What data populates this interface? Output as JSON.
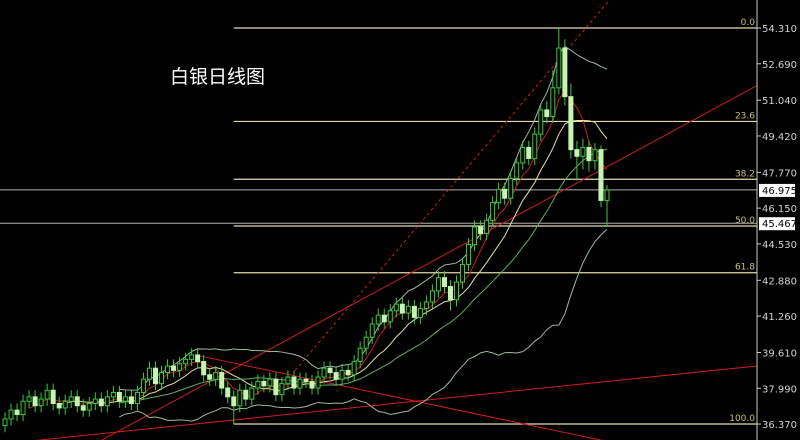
{
  "chart_data": {
    "type": "candlestick",
    "title": "白银日线图",
    "ylim": [
      35.6,
      55.6
    ],
    "y_ticks": [
      "54.310",
      "52.690",
      "51.040",
      "49.420",
      "47.770",
      "46.150",
      "44.530",
      "42.880",
      "41.260",
      "39.610",
      "37.990",
      "36.370"
    ],
    "current_price_labels": [
      "46.975",
      "45.467"
    ],
    "current_price_values": [
      46.975,
      45.467
    ],
    "fibonacci": {
      "high": 54.31,
      "low": 36.37,
      "start_index": 38,
      "levels": [
        {
          "label": "0.0",
          "ratio": 0
        },
        {
          "label": "23.6",
          "ratio": 0.236
        },
        {
          "label": "38.2",
          "ratio": 0.382
        },
        {
          "label": "50.0",
          "ratio": 0.5
        },
        {
          "label": "61.8",
          "ratio": 0.618
        },
        {
          "label": "100.0",
          "ratio": 1
        }
      ]
    },
    "trendlines": [
      {
        "style": "dashed",
        "from": [
          48.2,
          38.8
        ],
        "to": [
          100.5,
          55.6
        ]
      },
      {
        "style": "solid",
        "from": [
          15.8,
          35.6
        ],
        "to": [
          124.9,
          51.7
        ]
      },
      {
        "style": "solid",
        "from": [
          31.6,
          39.5
        ],
        "to": [
          99.7,
          35.6
        ]
      },
      {
        "style": "solid",
        "from": [
          4.2,
          35.6
        ],
        "to": [
          124.9,
          39.0
        ]
      }
    ],
    "open": [
      36.3,
      36.6,
      37.0,
      36.8,
      37.4,
      37.6,
      37.2,
      37.5,
      37.9,
      37.3,
      37.1,
      37.4,
      37.6,
      37.2,
      37.0,
      37.3,
      37.5,
      37.2,
      37.6,
      37.8,
      37.4,
      37.6,
      37.3,
      37.8,
      38.4,
      38.9,
      38.2,
      38.7,
      39.0,
      38.8,
      39.1,
      39.3,
      39.5,
      39.2,
      38.6,
      38.4,
      38.7,
      38.0,
      37.6,
      37.2,
      37.9,
      37.5,
      38.0,
      38.3,
      38.1,
      38.4,
      37.7,
      38.2,
      38.5,
      38.0,
      38.4,
      38.3,
      38.0,
      38.5,
      38.9,
      38.7,
      38.4,
      38.8,
      38.6,
      39.2,
      39.8,
      40.3,
      40.9,
      41.3,
      41.0,
      41.5,
      41.8,
      41.4,
      41.7,
      41.2,
      41.6,
      41.9,
      42.4,
      43.0,
      42.6,
      42.0,
      42.8,
      43.6,
      44.5,
      45.3,
      45.0,
      45.6,
      46.4,
      47.0,
      46.6,
      47.5,
      48.2,
      48.9,
      48.4,
      49.5,
      50.6,
      50.3,
      51.6,
      53.4,
      51.2,
      48.8,
      48.5,
      48.9,
      48.3,
      48.8,
      46.5
    ],
    "high": [
      36.9,
      37.3,
      37.3,
      37.7,
      37.9,
      37.9,
      37.8,
      38.2,
      38.2,
      37.6,
      37.7,
      37.9,
      37.9,
      37.5,
      37.6,
      37.8,
      37.8,
      37.9,
      38.1,
      38.1,
      37.9,
      37.9,
      38.1,
      38.7,
      39.2,
      39.2,
      39.0,
      39.3,
      39.3,
      39.4,
      39.6,
      39.8,
      39.8,
      39.5,
      38.9,
      39.0,
      39.0,
      38.3,
      37.9,
      38.2,
      38.2,
      38.3,
      38.6,
      38.6,
      38.7,
      38.7,
      38.5,
      38.8,
      38.8,
      38.7,
      38.7,
      38.6,
      38.8,
      39.2,
      39.2,
      39.0,
      39.1,
      39.1,
      39.5,
      40.1,
      40.6,
      41.2,
      41.6,
      41.6,
      41.8,
      42.1,
      42.1,
      42.0,
      42.0,
      41.9,
      42.2,
      42.7,
      43.3,
      43.3,
      42.9,
      43.1,
      43.9,
      44.8,
      45.6,
      45.6,
      45.9,
      46.7,
      47.3,
      47.3,
      47.8,
      48.5,
      49.2,
      49.2,
      49.8,
      50.9,
      51.0,
      52.4,
      54.31,
      53.8,
      51.8,
      49.2,
      49.3,
      49.2,
      49.1,
      49.0,
      47.2
    ],
    "low": [
      36.0,
      36.3,
      36.5,
      36.5,
      37.1,
      36.9,
      36.9,
      37.2,
      37.0,
      36.8,
      36.8,
      37.1,
      36.9,
      36.7,
      36.7,
      37.0,
      36.9,
      36.9,
      37.3,
      37.1,
      37.1,
      37.0,
      37.0,
      37.5,
      38.1,
      37.9,
      37.9,
      38.4,
      38.5,
      38.5,
      38.8,
      39.0,
      38.9,
      38.3,
      38.1,
      38.1,
      37.7,
      37.3,
      36.37,
      36.9,
      37.2,
      37.2,
      37.7,
      37.8,
      37.8,
      37.4,
      37.4,
      37.9,
      37.7,
      37.7,
      38.0,
      37.7,
      37.7,
      38.2,
      38.4,
      38.1,
      38.1,
      38.3,
      38.3,
      38.9,
      39.5,
      40.0,
      40.6,
      40.7,
      40.7,
      41.2,
      41.1,
      41.1,
      40.9,
      40.9,
      41.3,
      41.6,
      42.1,
      42.3,
      41.5,
      41.7,
      42.5,
      43.3,
      44.2,
      44.7,
      44.7,
      45.3,
      46.1,
      46.3,
      46.3,
      47.2,
      47.9,
      48.1,
      48.1,
      49.2,
      50.0,
      50.0,
      51.3,
      50.8,
      48.4,
      47.4,
      47.9,
      47.8,
      47.9,
      46.2,
      45.3
    ],
    "close": [
      36.6,
      37.0,
      36.8,
      37.4,
      37.6,
      37.2,
      37.5,
      37.9,
      37.3,
      37.1,
      37.4,
      37.6,
      37.2,
      37.0,
      37.3,
      37.5,
      37.2,
      37.6,
      37.8,
      37.4,
      37.6,
      37.3,
      37.8,
      38.4,
      38.9,
      38.2,
      38.7,
      39.0,
      38.8,
      39.1,
      39.3,
      39.5,
      39.2,
      38.6,
      38.4,
      38.7,
      38.0,
      37.6,
      37.2,
      37.9,
      37.5,
      38.0,
      38.3,
      38.1,
      38.4,
      37.7,
      38.2,
      38.5,
      38.0,
      38.4,
      38.3,
      38.0,
      38.5,
      38.9,
      38.7,
      38.4,
      38.8,
      38.6,
      39.2,
      39.8,
      40.3,
      40.9,
      41.3,
      41.0,
      41.5,
      41.8,
      41.4,
      41.7,
      41.2,
      41.6,
      41.9,
      42.4,
      43.0,
      42.6,
      42.0,
      42.8,
      43.6,
      44.5,
      45.3,
      45.0,
      45.6,
      46.4,
      47.0,
      46.6,
      47.5,
      48.2,
      48.9,
      48.4,
      49.5,
      50.6,
      50.3,
      51.6,
      53.4,
      51.2,
      48.8,
      48.5,
      48.9,
      48.3,
      48.8,
      46.5,
      46.975
    ],
    "indicators": [
      {
        "type": "ma",
        "period": 5,
        "color": "#cc1b1b"
      },
      {
        "type": "ma",
        "period": 10,
        "color": "#e6e29a"
      },
      {
        "type": "ma",
        "period": 20,
        "color": "#5fae5f"
      },
      {
        "type": "bollinger",
        "period": 20,
        "color": "#9fb8a0"
      }
    ],
    "colors": {
      "up": "#33cc33",
      "down_fill": "#c6f5b0",
      "fib": "#e0dca8",
      "fib_label": "#c9c26a",
      "trend": "#d01c1c",
      "axis_text": "#d0d0d0",
      "price_line": "#b0b0b0"
    }
  }
}
